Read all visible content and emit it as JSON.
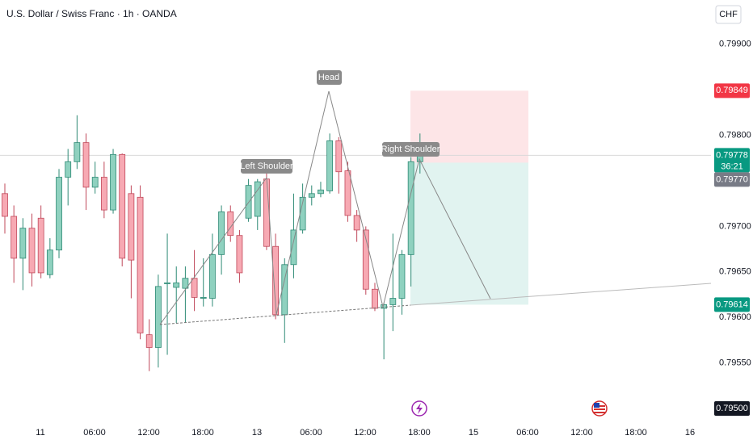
{
  "chart_data": {
    "type": "candlestick",
    "title": "U.S. Dollar / Swiss Franc · 1h · OANDA",
    "currency": "CHF",
    "up_color": "#8fd1bf",
    "up_border": "#2e8a75",
    "down_color": "#f7a9b3",
    "down_border": "#c0485a",
    "open": [
      0.79736,
      0.79711,
      0.79665,
      0.79698,
      0.79709,
      0.79647,
      0.79674,
      0.79754,
      0.79771,
      0.79792,
      0.79743,
      0.79754,
      0.79718,
      0.79779,
      0.79736,
      0.79732,
      0.79581,
      0.79567,
      0.79637,
      0.79633,
      0.79632,
      0.79643,
      0.79621,
      0.79621,
      0.79669,
      0.79716,
      0.7969,
      0.79709,
      0.79711,
      0.79752,
      0.79678,
      0.79603,
      0.79658,
      0.79696,
      0.79732,
      0.79736,
      0.79739,
      0.79794,
      0.79761,
      0.79712,
      0.79696,
      0.79631,
      0.7961,
      0.79614,
      0.79621,
      0.79669,
      0.79771
    ],
    "high": [
      0.79747,
      0.79723,
      0.79709,
      0.79714,
      0.79723,
      0.79687,
      0.79763,
      0.79785,
      0.79822,
      0.79802,
      0.79771,
      0.79771,
      0.79785,
      0.7978,
      0.79745,
      0.79745,
      0.79598,
      0.79647,
      0.79692,
      0.79656,
      0.79656,
      0.79674,
      0.79665,
      0.79692,
      0.79723,
      0.79723,
      0.79696,
      0.79752,
      0.79752,
      0.79758,
      0.79692,
      0.79665,
      0.79736,
      0.79747,
      0.79745,
      0.79749,
      0.79802,
      0.79798,
      0.79771,
      0.79718,
      0.797,
      0.79638,
      0.79616,
      0.79692,
      0.79674,
      0.79776,
      0.79802
    ],
    "low": [
      0.79692,
      0.79638,
      0.7963,
      0.79634,
      0.79643,
      0.79643,
      0.79665,
      0.79723,
      0.79763,
      0.79718,
      0.79736,
      0.79709,
      0.79714,
      0.79656,
      0.79621,
      0.79576,
      0.79541,
      0.79545,
      0.79559,
      0.79594,
      0.79594,
      0.79607,
      0.79612,
      0.79612,
      0.79647,
      0.79683,
      0.79638,
      0.79705,
      0.79696,
      0.79674,
      0.79598,
      0.79572,
      0.79643,
      0.79692,
      0.79723,
      0.79732,
      0.79736,
      0.79736,
      0.79705,
      0.79683,
      0.79625,
      0.79607,
      0.79554,
      0.79585,
      0.79603,
      0.79634,
      0.79758
    ],
    "close": [
      0.79711,
      0.79665,
      0.79698,
      0.79649,
      0.79649,
      0.79674,
      0.79754,
      0.79771,
      0.79792,
      0.79743,
      0.79754,
      0.79718,
      0.79779,
      0.79665,
      0.79663,
      0.79583,
      0.79567,
      0.79634,
      0.79638,
      0.79638,
      0.79643,
      0.79622,
      0.79622,
      0.79669,
      0.79716,
      0.7969,
      0.79649,
      0.79745,
      0.79749,
      0.79678,
      0.79603,
      0.79658,
      0.79696,
      0.79732,
      0.79736,
      0.7974,
      0.79794,
      0.7976,
      0.79712,
      0.79696,
      0.79631,
      0.7961,
      0.79614,
      0.79621,
      0.79669,
      0.79771,
      0.79778
    ],
    "xtick_labels": [
      "11",
      "06:00",
      "12:00",
      "18:00",
      "13",
      "06:00",
      "12:00",
      "18:00",
      "15",
      "06:00",
      "12:00",
      "18:00",
      "16"
    ],
    "ylim": [
      0.7949,
      0.7995
    ],
    "yticks": [
      {
        "value": 0.799,
        "label": "0.79900"
      },
      {
        "value": 0.798,
        "label": "0.79800"
      },
      {
        "value": 0.797,
        "label": "0.79700"
      },
      {
        "value": 0.7965,
        "label": "0.79650"
      },
      {
        "value": 0.796,
        "label": "0.79600"
      },
      {
        "value": 0.7955,
        "label": "0.79550"
      }
    ],
    "position": {
      "stop": {
        "value": 0.79849,
        "label": "0.79849"
      },
      "entry": {
        "value": 0.7977,
        "label": "0.79770"
      },
      "target": {
        "value": 0.79614,
        "label": "0.79614"
      }
    },
    "last_price": {
      "value": 0.79778,
      "label": "0.79778",
      "countdown": "36:21"
    },
    "cursor_price": {
      "value": 0.795,
      "label": "0.79500"
    },
    "annotations": [
      "Left Shoulder",
      "Head",
      "Right Shoulder"
    ]
  }
}
